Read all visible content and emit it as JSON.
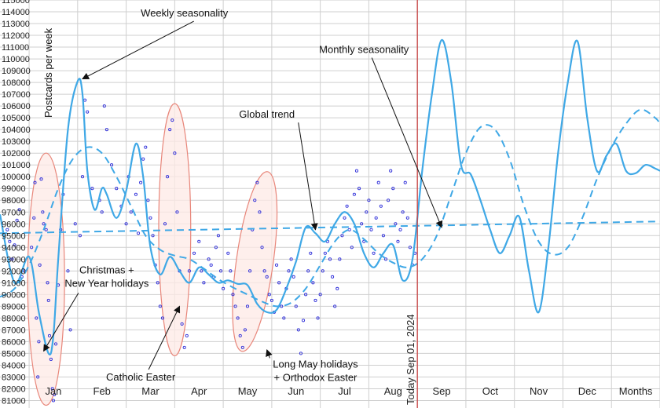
{
  "chart_data": {
    "type": "line",
    "title": "",
    "ylabel": "Postcards per week",
    "xlabel": "",
    "ylim": [
      80500,
      115000
    ],
    "y_ticks": [
      81000,
      82000,
      83000,
      84000,
      85000,
      86000,
      87000,
      88000,
      89000,
      90000,
      91000,
      92000,
      93000,
      94000,
      95000,
      96000,
      97000,
      98000,
      99000,
      100000,
      101000,
      102000,
      103000,
      104000,
      105000,
      106000,
      107000,
      108000,
      109000,
      110000,
      111000,
      112000,
      113000,
      114000,
      115000
    ],
    "x_labels": [
      "Jan",
      "Feb",
      "Mar",
      "Apr",
      "May",
      "Jun",
      "Jul",
      "Aug",
      "Sep",
      "Oct",
      "Nov",
      "Dec",
      "Months"
    ],
    "x_label_positions": [
      0.5,
      1.5,
      2.5,
      3.5,
      4.5,
      5.5,
      6.5,
      7.5,
      8.5,
      9.5,
      10.5,
      11.5,
      12.5
    ],
    "xlim": [
      -0.6,
      13.0
    ],
    "today_label": "Today Sep 01, 2024",
    "today_x": 8.0,
    "colors": {
      "line": "#3fa8e6",
      "points": "#2d2dd9",
      "today": "#c84242",
      "ellipse_stroke": "#e8867a",
      "ellipse_fill": "#fde9e6"
    },
    "series": [
      {
        "name": "Weekly seasonality",
        "style": "solid",
        "x": [
          -0.6,
          -0.3,
          0.0,
          0.2,
          0.4,
          0.5,
          0.6,
          0.8,
          1.0,
          1.1,
          1.2,
          1.35,
          1.5,
          1.6,
          1.8,
          2.0,
          2.2,
          2.35,
          2.5,
          2.7,
          2.9,
          3.1,
          3.3,
          3.5,
          3.7,
          3.9,
          4.1,
          4.3,
          4.5,
          4.7,
          4.9,
          5.1,
          5.3,
          5.5,
          5.7,
          5.9,
          6.1,
          6.3,
          6.5,
          6.7,
          6.9,
          7.1,
          7.3,
          7.5,
          7.7,
          7.9,
          8.1,
          8.3,
          8.5,
          8.7,
          8.9,
          9.1,
          9.3,
          9.5,
          9.7,
          9.9,
          10.1,
          10.3,
          10.5,
          10.7,
          10.9,
          11.1,
          11.3,
          11.5,
          11.7,
          11.9,
          12.1,
          12.3,
          12.5,
          12.7,
          12.9,
          13.0
        ],
        "y": [
          96800,
          91000,
          93200,
          88500,
          85000,
          86500,
          93000,
          104000,
          108100,
          107000,
          100500,
          97200,
          99000,
          98500,
          96500,
          98800,
          102800,
          100000,
          94000,
          91700,
          93200,
          92000,
          91000,
          92300,
          91700,
          91000,
          91200,
          90900,
          90800,
          89200,
          88500,
          88700,
          90500,
          92800,
          95700,
          95200,
          94500,
          96000,
          97000,
          96000,
          93500,
          92300,
          93500,
          94200,
          91200,
          93000,
          100500,
          107000,
          111600,
          108000,
          101000,
          100200,
          98000,
          95500,
          93500,
          95000,
          96600,
          92000,
          88500,
          94000,
          102000,
          108000,
          111500,
          105000,
          100500,
          101800,
          102800,
          100500,
          100300,
          101000,
          100700,
          100500
        ]
      },
      {
        "name": "Monthly seasonality",
        "style": "dashed",
        "x": [
          -0.6,
          -0.3,
          0.0,
          0.3,
          0.6,
          0.9,
          1.2,
          1.5,
          1.8,
          2.1,
          2.4,
          2.7,
          3.0,
          3.3,
          3.6,
          3.9,
          4.2,
          4.5,
          4.8,
          5.1,
          5.4,
          5.7,
          6.0,
          6.3,
          6.6,
          6.9,
          7.2,
          7.5,
          7.8,
          8.1,
          8.4,
          8.7,
          9.0,
          9.3,
          9.6,
          9.9,
          10.2,
          10.5,
          10.8,
          11.1,
          11.4,
          11.7,
          12.0,
          12.3,
          12.6,
          12.9,
          13.0
        ],
        "y": [
          89800,
          90500,
          92500,
          95500,
          99000,
          101500,
          102500,
          102000,
          100000,
          97500,
          95000,
          93800,
          93300,
          93000,
          92200,
          91300,
          90600,
          90000,
          89400,
          89000,
          89300,
          90500,
          92500,
          94500,
          95500,
          94700,
          93500,
          92700,
          92300,
          93000,
          95000,
          98500,
          102000,
          104200,
          104000,
          101500,
          97500,
          94500,
          93400,
          94000,
          96500,
          99800,
          102500,
          104500,
          105700,
          105000,
          104500
        ]
      },
      {
        "name": "Global trend",
        "style": "dashed",
        "x": [
          -0.6,
          13.0
        ],
        "y": [
          95200,
          96200
        ]
      }
    ],
    "scatter_points": [
      [
        -0.45,
        95500
      ],
      [
        -0.4,
        94500
      ],
      [
        -0.35,
        93000
      ],
      [
        -0.3,
        94200
      ],
      [
        -0.25,
        96300
      ],
      [
        -0.2,
        97200
      ],
      [
        -0.15,
        91500
      ],
      [
        -0.1,
        92000
      ],
      [
        0.05,
        94000
      ],
      [
        0.1,
        96500
      ],
      [
        0.12,
        99500
      ],
      [
        0.15,
        88000
      ],
      [
        0.18,
        83000
      ],
      [
        0.2,
        86000
      ],
      [
        0.22,
        92500
      ],
      [
        0.25,
        99800
      ],
      [
        0.28,
        97000
      ],
      [
        0.3,
        96000
      ],
      [
        0.35,
        95500
      ],
      [
        0.38,
        91000
      ],
      [
        0.4,
        89500
      ],
      [
        0.42,
        86500
      ],
      [
        0.45,
        84500
      ],
      [
        0.48,
        82000
      ],
      [
        0.5,
        81000
      ],
      [
        0.52,
        81500
      ],
      [
        0.55,
        85800
      ],
      [
        0.6,
        90800
      ],
      [
        0.65,
        95500
      ],
      [
        0.7,
        98500
      ],
      [
        0.8,
        92000
      ],
      [
        0.85,
        87000
      ],
      [
        0.95,
        96000
      ],
      [
        1.05,
        95000
      ],
      [
        1.1,
        100000
      ],
      [
        1.15,
        106500
      ],
      [
        1.2,
        105500
      ],
      [
        1.3,
        99000
      ],
      [
        1.45,
        98000
      ],
      [
        1.5,
        97000
      ],
      [
        1.55,
        106000
      ],
      [
        1.6,
        104000
      ],
      [
        1.7,
        101000
      ],
      [
        1.8,
        99000
      ],
      [
        1.9,
        97500
      ],
      [
        2.0,
        96000
      ],
      [
        2.05,
        100000
      ],
      [
        2.1,
        97000
      ],
      [
        2.2,
        98500
      ],
      [
        2.25,
        95200
      ],
      [
        2.3,
        99500
      ],
      [
        2.35,
        101500
      ],
      [
        2.4,
        102500
      ],
      [
        2.45,
        98000
      ],
      [
        2.5,
        96500
      ],
      [
        2.55,
        95000
      ],
      [
        2.6,
        92500
      ],
      [
        2.65,
        91000
      ],
      [
        2.7,
        89000
      ],
      [
        2.75,
        88000
      ],
      [
        2.8,
        96000
      ],
      [
        2.85,
        100000
      ],
      [
        2.9,
        104000
      ],
      [
        2.95,
        104800
      ],
      [
        3.0,
        102000
      ],
      [
        3.05,
        97000
      ],
      [
        3.1,
        92000
      ],
      [
        3.15,
        87500
      ],
      [
        3.2,
        85500
      ],
      [
        3.25,
        86500
      ],
      [
        3.3,
        92000
      ],
      [
        3.4,
        93500
      ],
      [
        3.5,
        94500
      ],
      [
        3.55,
        92000
      ],
      [
        3.6,
        91000
      ],
      [
        3.7,
        93000
      ],
      [
        3.75,
        92500
      ],
      [
        3.8,
        91500
      ],
      [
        3.85,
        94000
      ],
      [
        3.9,
        95000
      ],
      [
        3.95,
        92000
      ],
      [
        4.0,
        90500
      ],
      [
        4.1,
        93500
      ],
      [
        4.15,
        92000
      ],
      [
        4.2,
        90000
      ],
      [
        4.25,
        89000
      ],
      [
        4.3,
        88000
      ],
      [
        4.35,
        86500
      ],
      [
        4.4,
        85500
      ],
      [
        4.45,
        87000
      ],
      [
        4.5,
        89000
      ],
      [
        4.55,
        92000
      ],
      [
        4.6,
        95500
      ],
      [
        4.65,
        98000
      ],
      [
        4.7,
        99500
      ],
      [
        4.75,
        97000
      ],
      [
        4.8,
        94000
      ],
      [
        4.85,
        92000
      ],
      [
        4.9,
        91500
      ],
      [
        4.95,
        90000
      ],
      [
        5.0,
        89500
      ],
      [
        5.05,
        88500
      ],
      [
        5.1,
        92500
      ],
      [
        5.15,
        91000
      ],
      [
        5.2,
        89000
      ],
      [
        5.25,
        88000
      ],
      [
        5.3,
        90500
      ],
      [
        5.35,
        92000
      ],
      [
        5.4,
        93000
      ],
      [
        5.45,
        91500
      ],
      [
        5.5,
        89000
      ],
      [
        5.55,
        87000
      ],
      [
        5.6,
        85000
      ],
      [
        5.65,
        87800
      ],
      [
        5.7,
        90000
      ],
      [
        5.75,
        92000
      ],
      [
        5.8,
        93500
      ],
      [
        5.85,
        91000
      ],
      [
        5.9,
        89500
      ],
      [
        5.95,
        88000
      ],
      [
        6.0,
        90000
      ],
      [
        6.05,
        92000
      ],
      [
        6.1,
        93500
      ],
      [
        6.15,
        94500
      ],
      [
        6.2,
        93000
      ],
      [
        6.25,
        91500
      ],
      [
        6.3,
        89000
      ],
      [
        6.35,
        90500
      ],
      [
        6.4,
        93000
      ],
      [
        6.45,
        95000
      ],
      [
        6.5,
        96500
      ],
      [
        6.55,
        97500
      ],
      [
        6.6,
        95500
      ],
      [
        6.65,
        94000
      ],
      [
        6.7,
        98500
      ],
      [
        6.75,
        100500
      ],
      [
        6.8,
        99000
      ],
      [
        6.85,
        96000
      ],
      [
        6.9,
        94500
      ],
      [
        6.95,
        97000
      ],
      [
        7.0,
        98000
      ],
      [
        7.05,
        95500
      ],
      [
        7.1,
        93500
      ],
      [
        7.15,
        96500
      ],
      [
        7.2,
        99500
      ],
      [
        7.25,
        97500
      ],
      [
        7.3,
        95000
      ],
      [
        7.35,
        93000
      ],
      [
        7.4,
        98000
      ],
      [
        7.45,
        100500
      ],
      [
        7.5,
        99000
      ],
      [
        7.55,
        96000
      ],
      [
        7.6,
        94500
      ],
      [
        7.65,
        95500
      ],
      [
        7.7,
        97000
      ],
      [
        7.75,
        99500
      ],
      [
        7.8,
        96500
      ],
      [
        7.85,
        94000
      ],
      [
        7.9,
        92500
      ],
      [
        7.95,
        93500
      ]
    ],
    "annotations": [
      {
        "id": "weekly",
        "lines": [
          "Weekly seasonality"
        ],
        "x": 3.2,
        "y": 113600,
        "ax": 1.1,
        "ay": 108300
      },
      {
        "id": "monthly",
        "lines": [
          "Monthly seasonality"
        ],
        "x": 6.9,
        "y": 110500,
        "ax": 8.5,
        "ay": 95700
      },
      {
        "id": "global",
        "lines": [
          "Global trend"
        ],
        "x": 4.9,
        "y": 105000,
        "ax": 5.9,
        "ay": 95500
      },
      {
        "id": "christmas",
        "lines": [
          "Christmas +",
          "New Year holidays"
        ],
        "x": 1.6,
        "y": 91800,
        "ax": 0.3,
        "ay": 85200
      },
      {
        "id": "catholic",
        "lines": [
          "Catholic Easter"
        ],
        "x": 2.3,
        "y": 82700,
        "ax": 3.1,
        "ay": 89000
      },
      {
        "id": "may",
        "lines": [
          "Long May holidays",
          "+ Orthodox Easter"
        ],
        "x": 5.9,
        "y": 83800,
        "ax": 4.9,
        "ay": 85300
      }
    ],
    "ellipses": [
      {
        "id": "christmas-ellipse",
        "cx": 0.35,
        "cy": 91300,
        "rx": 0.38,
        "ry": 10700
      },
      {
        "id": "catholic-ellipse",
        "cx": 3.0,
        "cy": 95500,
        "rx": 0.33,
        "ry": 10700
      },
      {
        "id": "may-ellipse",
        "cx": 4.65,
        "cy": 92800,
        "rx": 0.38,
        "ry": 7700,
        "rot": 8
      }
    ]
  }
}
